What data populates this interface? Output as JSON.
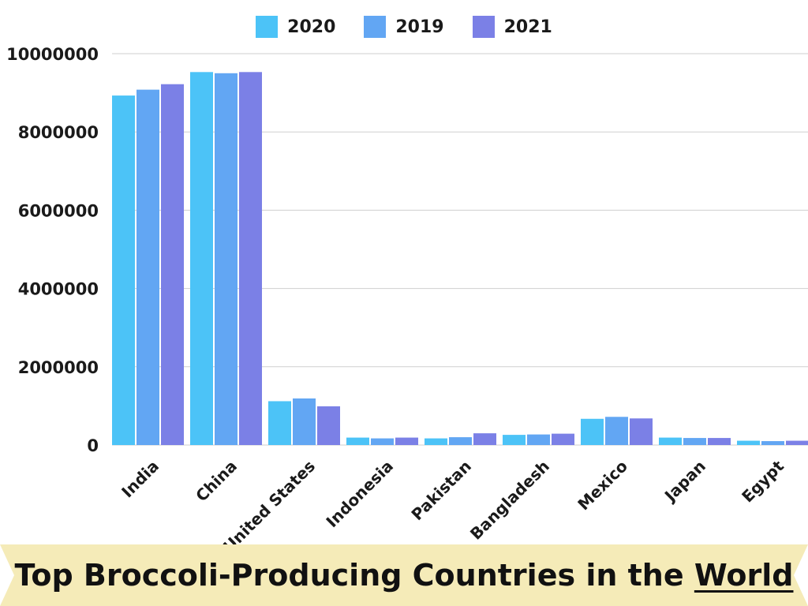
{
  "legend": [
    {
      "label": "2020",
      "color": "#4cc3f7"
    },
    {
      "label": "2019",
      "color": "#62a6f3"
    },
    {
      "label": "2021",
      "color": "#7b80e6"
    }
  ],
  "banner": {
    "title_main": "Top Broccoli-Producing Countries in the ",
    "title_emph": "World"
  },
  "chart_data": {
    "type": "bar",
    "categories": [
      "India",
      "China",
      "United States",
      "Indonesia",
      "Pakistan",
      "Bangladesh",
      "Mexico",
      "Japan",
      "Egypt"
    ],
    "series": [
      {
        "name": "2020",
        "color": "#4cc3f7",
        "values": [
          8930000,
          9530000,
          1120000,
          190000,
          170000,
          260000,
          670000,
          190000,
          110000
        ]
      },
      {
        "name": "2019",
        "color": "#62a6f3",
        "values": [
          9080000,
          9500000,
          1190000,
          170000,
          200000,
          270000,
          720000,
          180000,
          100000
        ]
      },
      {
        "name": "2021",
        "color": "#7b80e6",
        "values": [
          9220000,
          9530000,
          990000,
          190000,
          300000,
          290000,
          680000,
          180000,
          110000
        ]
      }
    ],
    "ylim": [
      0,
      10000000
    ],
    "yticks": [
      0,
      2000000,
      4000000,
      6000000,
      8000000,
      10000000
    ],
    "ytick_labels": [
      "0",
      "2000000",
      "4000000",
      "6000000",
      "8000000",
      "10000000"
    ],
    "grid": true,
    "legend_position": "top-center",
    "xlabel": "",
    "ylabel": ""
  }
}
